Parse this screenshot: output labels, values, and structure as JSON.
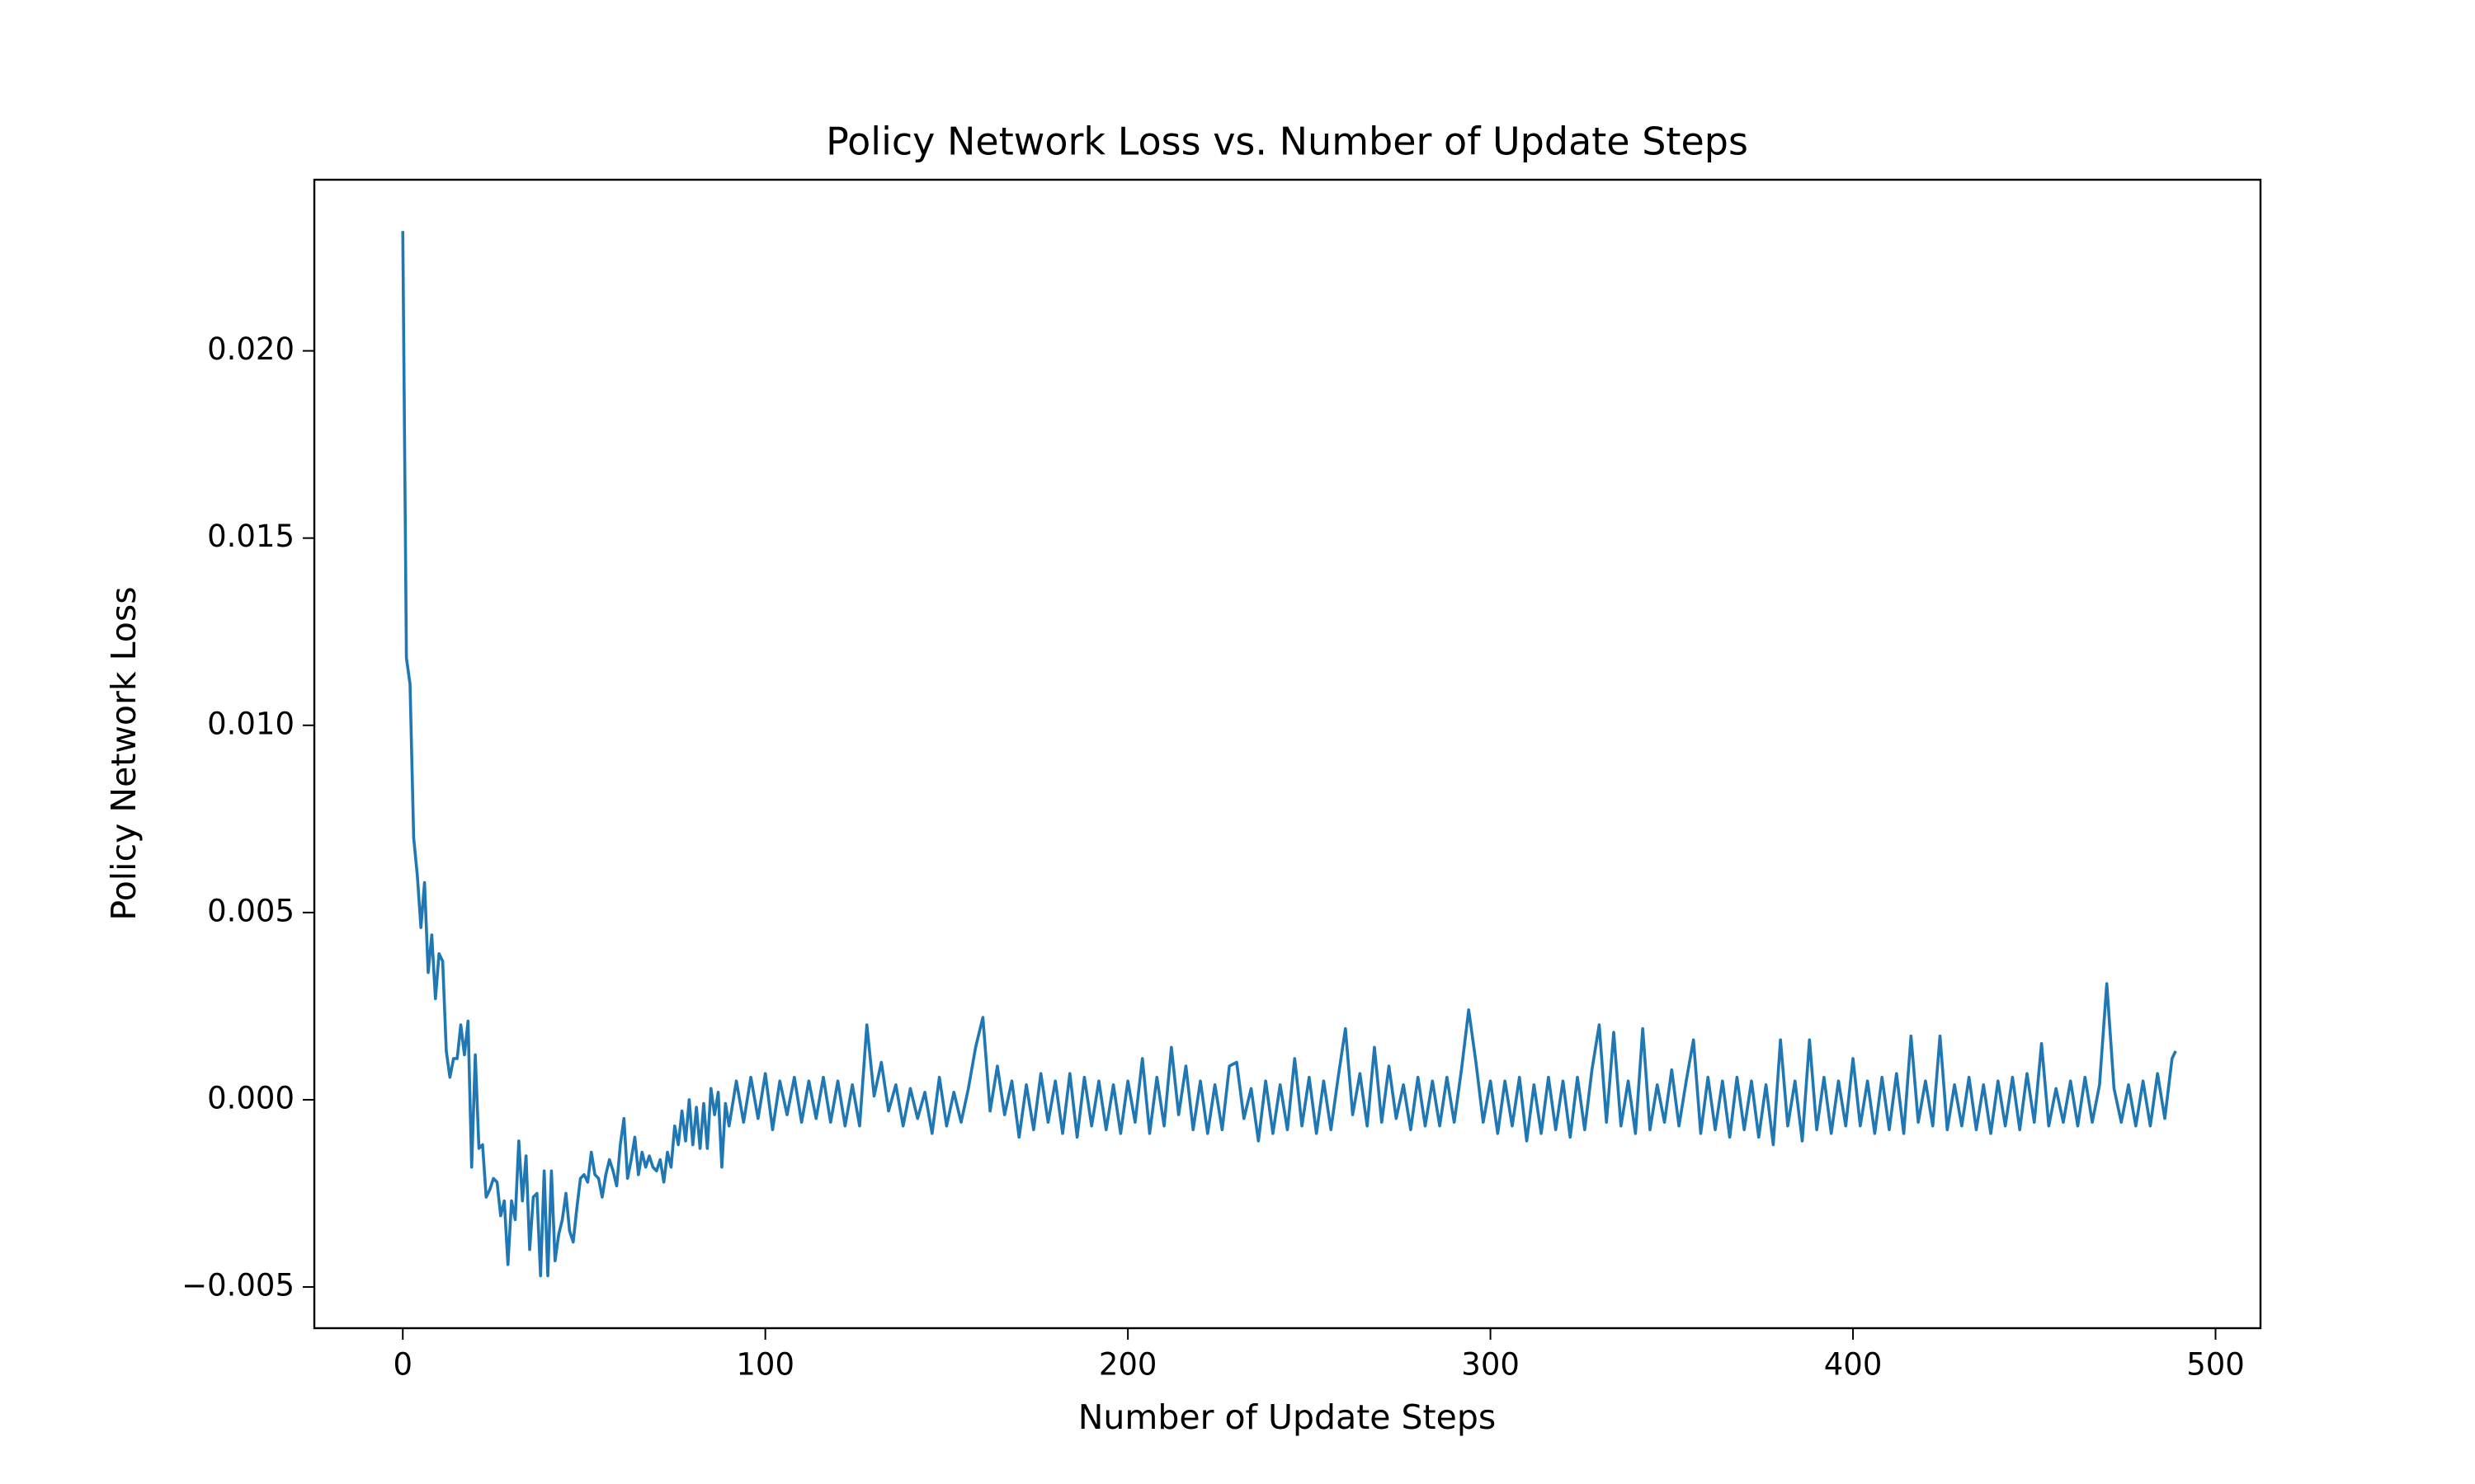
{
  "chart_data": {
    "type": "line",
    "title": "Policy Network Loss vs. Number of Update Steps",
    "x_label": "Number of Update Steps",
    "y_label": "Policy Network Loss",
    "color": "#1f77b4",
    "xlim": [
      -24.4,
      512.4
    ],
    "ylim": [
      -0.0061,
      0.02457
    ],
    "xticks": [
      0,
      100,
      200,
      300,
      400,
      500
    ],
    "yticks": [
      {
        "value": -0.005,
        "label": "−0.005"
      },
      {
        "value": 0,
        "label": "0.000"
      },
      0.005,
      {
        "value": 0.01,
        "label": "0.010"
      },
      0.015,
      {
        "value": 0.02,
        "label": "0.020"
      }
    ],
    "x": [
      0,
      1,
      2,
      3,
      4,
      5,
      6,
      7,
      8,
      9,
      10,
      11,
      12,
      13,
      14,
      15,
      16,
      17,
      18,
      19,
      20,
      21,
      22,
      23,
      24,
      25,
      26,
      27,
      28,
      29,
      30,
      31,
      32,
      33,
      34,
      35,
      36,
      37,
      38,
      39,
      40,
      41,
      42,
      43,
      44,
      45,
      46,
      47,
      48,
      49,
      50,
      51,
      52,
      53,
      54,
      55,
      56,
      57,
      58,
      59,
      60,
      61,
      62,
      63,
      64,
      65,
      66,
      67,
      68,
      69,
      70,
      71,
      72,
      73,
      74,
      75,
      76,
      77,
      78,
      79,
      80,
      81,
      82,
      83,
      84,
      85,
      86,
      87,
      88,
      89,
      90,
      92,
      94,
      96,
      98,
      100,
      102,
      104,
      106,
      108,
      110,
      112,
      114,
      116,
      118,
      120,
      122,
      124,
      126,
      128,
      130,
      132,
      134,
      136,
      138,
      140,
      142,
      144,
      146,
      148,
      150,
      152,
      154,
      156,
      158,
      160,
      162,
      164,
      166,
      168,
      170,
      172,
      174,
      176,
      178,
      180,
      182,
      184,
      186,
      188,
      190,
      192,
      194,
      196,
      198,
      200,
      202,
      204,
      206,
      208,
      210,
      212,
      214,
      216,
      218,
      220,
      222,
      224,
      226,
      228,
      230,
      232,
      234,
      236,
      238,
      240,
      242,
      244,
      246,
      248,
      250,
      252,
      254,
      256,
      258,
      260,
      262,
      264,
      266,
      268,
      270,
      272,
      274,
      276,
      278,
      280,
      282,
      284,
      286,
      288,
      290,
      292,
      294,
      296,
      298,
      300,
      302,
      304,
      306,
      308,
      310,
      312,
      314,
      316,
      318,
      320,
      322,
      324,
      326,
      328,
      330,
      332,
      334,
      336,
      338,
      340,
      342,
      344,
      346,
      348,
      350,
      352,
      354,
      356,
      358,
      360,
      362,
      364,
      366,
      368,
      370,
      372,
      374,
      376,
      378,
      380,
      382,
      384,
      386,
      388,
      390,
      392,
      394,
      396,
      398,
      400,
      402,
      404,
      406,
      408,
      410,
      412,
      414,
      416,
      418,
      420,
      422,
      424,
      426,
      428,
      430,
      432,
      434,
      436,
      438,
      440,
      442,
      444,
      446,
      448,
      450,
      452,
      454,
      456,
      458,
      460,
      462,
      464,
      466,
      468,
      470,
      472,
      474,
      476,
      478,
      480,
      482,
      484,
      486,
      488,
      489
    ],
    "values": [
      0.0232,
      0.0118,
      0.0111,
      0.007,
      0.006,
      0.0046,
      0.0058,
      0.0034,
      0.0044,
      0.0027,
      0.0039,
      0.0037,
      0.0013,
      0.0006,
      0.0011,
      0.0011,
      0.002,
      0.0012,
      0.0021,
      -0.0018,
      0.0012,
      -0.0013,
      -0.0012,
      -0.0026,
      -0.0024,
      -0.0021,
      -0.0022,
      -0.0031,
      -0.0027,
      -0.0044,
      -0.0027,
      -0.0032,
      -0.0011,
      -0.0027,
      -0.0015,
      -0.004,
      -0.0026,
      -0.0025,
      -0.0047,
      -0.0019,
      -0.0047,
      -0.0019,
      -0.0043,
      -0.0036,
      -0.0032,
      -0.0025,
      -0.0035,
      -0.0038,
      -0.0029,
      -0.0021,
      -0.002,
      -0.0022,
      -0.0014,
      -0.002,
      -0.0021,
      -0.0026,
      -0.002,
      -0.0016,
      -0.0019,
      -0.0023,
      -0.0012,
      -0.0005,
      -0.0021,
      -0.0016,
      -0.001,
      -0.002,
      -0.0014,
      -0.0018,
      -0.0015,
      -0.0018,
      -0.0019,
      -0.0016,
      -0.0022,
      -0.0014,
      -0.0018,
      -0.0007,
      -0.0012,
      -0.0003,
      -0.0011,
      0.0,
      -0.0012,
      -0.0002,
      -0.0013,
      -0.0001,
      -0.0013,
      0.0003,
      -0.0004,
      0.0002,
      -0.0018,
      -0.0001,
      -0.0007,
      0.0005,
      -0.0006,
      0.0006,
      -0.0005,
      0.0007,
      -0.0008,
      0.0005,
      -0.0004,
      0.0006,
      -0.0006,
      0.0005,
      -0.0005,
      0.0006,
      -0.0006,
      0.0005,
      -0.0007,
      0.0004,
      -0.0007,
      0.002,
      0.0001,
      0.001,
      -0.0003,
      0.0004,
      -0.0007,
      0.0003,
      -0.0005,
      0.0002,
      -0.0009,
      0.0006,
      -0.0007,
      0.0002,
      -0.0006,
      0.0003,
      0.0014,
      0.0022,
      -0.0003,
      0.0009,
      -0.0004,
      0.0005,
      -0.001,
      0.0004,
      -0.0008,
      0.0007,
      -0.0006,
      0.0005,
      -0.0009,
      0.0007,
      -0.001,
      0.0006,
      -0.0007,
      0.0005,
      -0.0008,
      0.0004,
      -0.0009,
      0.0005,
      -0.0006,
      0.0011,
      -0.0009,
      0.0006,
      -0.0007,
      0.0014,
      -0.0004,
      0.0009,
      -0.0008,
      0.0005,
      -0.0009,
      0.0004,
      -0.0008,
      0.0009,
      0.001,
      -0.0005,
      0.0003,
      -0.0011,
      0.0005,
      -0.0009,
      0.0004,
      -0.0008,
      0.0011,
      -0.0007,
      0.0006,
      -0.0009,
      0.0005,
      -0.0008,
      0.0006,
      0.0019,
      -0.0004,
      0.0007,
      -0.0007,
      0.0014,
      -0.0006,
      0.0009,
      -0.0005,
      0.0004,
      -0.0008,
      0.0006,
      -0.0007,
      0.0005,
      -0.0007,
      0.0006,
      -0.0006,
      0.0008,
      0.0024,
      0.001,
      -0.0006,
      0.0005,
      -0.0009,
      0.0005,
      -0.0007,
      0.0006,
      -0.0011,
      0.0004,
      -0.0009,
      0.0006,
      -0.0008,
      0.0005,
      -0.001,
      0.0006,
      -0.0008,
      0.0008,
      0.002,
      -0.0006,
      0.0018,
      -0.0007,
      0.0005,
      -0.0009,
      0.0019,
      -0.0008,
      0.0004,
      -0.0006,
      0.0008,
      -0.0007,
      0.0005,
      0.0016,
      -0.0009,
      0.0006,
      -0.0008,
      0.0005,
      -0.001,
      0.0006,
      -0.0008,
      0.0005,
      -0.001,
      0.0004,
      -0.0012,
      0.0016,
      -0.0007,
      0.0005,
      -0.0011,
      0.0016,
      -0.0008,
      0.0006,
      -0.0009,
      0.0005,
      -0.0007,
      0.0011,
      -0.0007,
      0.0005,
      -0.0009,
      0.0006,
      -0.0008,
      0.0007,
      -0.0009,
      0.0017,
      -0.0006,
      0.0005,
      -0.0007,
      0.0017,
      -0.0008,
      0.0004,
      -0.0007,
      0.0006,
      -0.0008,
      0.0004,
      -0.0009,
      0.0005,
      -0.0007,
      0.0006,
      -0.0008,
      0.0007,
      -0.0006,
      0.0015,
      -0.0007,
      0.0003,
      -0.0006,
      0.0005,
      -0.0007,
      0.0006,
      -0.0006,
      0.0004,
      0.0031,
      0.0003,
      -0.0006,
      0.0004,
      -0.0007,
      0.0005,
      -0.0007,
      0.0007,
      -0.0005,
      0.0011,
      0.0013
    ]
  }
}
